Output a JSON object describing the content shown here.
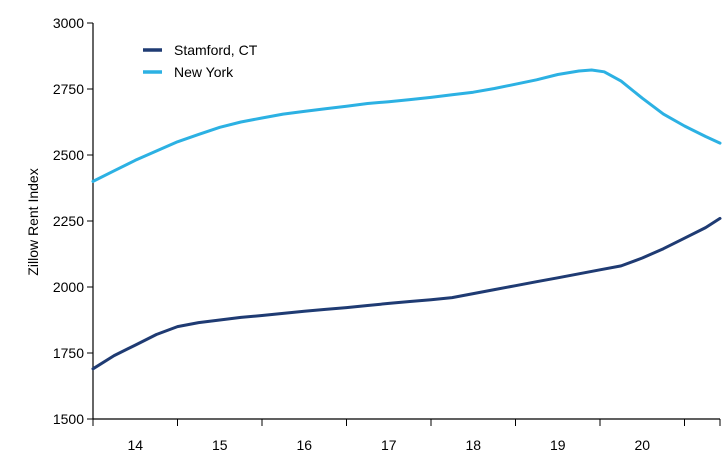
{
  "chart_data": {
    "type": "line",
    "title": "",
    "xlabel": "",
    "ylabel": "Zillow Rent Index",
    "ylim": [
      1500,
      3000
    ],
    "yticks": [
      1500,
      1750,
      2000,
      2250,
      2500,
      2750,
      3000
    ],
    "xlim": [
      2013.5,
      2020.92
    ],
    "xtick_labels": [
      "14",
      "15",
      "16",
      "17",
      "18",
      "19",
      "20"
    ],
    "xtick_label_positions": [
      2014.0,
      2015.0,
      2016.0,
      2017.0,
      2018.0,
      2019.0,
      2020.0
    ],
    "xtick_marks": [
      2013.5,
      2014.5,
      2015.5,
      2016.5,
      2017.5,
      2018.5,
      2019.5,
      2020.5,
      2020.92
    ],
    "grid": false,
    "legend": "top-left",
    "series": [
      {
        "name": "Stamford, CT",
        "color": "#1f3b73",
        "x": [
          2013.5,
          2013.75,
          2014.0,
          2014.25,
          2014.5,
          2014.75,
          2015.0,
          2015.25,
          2015.5,
          2015.75,
          2016.0,
          2016.25,
          2016.5,
          2016.75,
          2017.0,
          2017.25,
          2017.5,
          2017.75,
          2018.0,
          2018.25,
          2018.5,
          2018.75,
          2019.0,
          2019.25,
          2019.5,
          2019.75,
          2020.0,
          2020.25,
          2020.5,
          2020.75,
          2020.92
        ],
        "values": [
          1690,
          1740,
          1780,
          1820,
          1850,
          1865,
          1875,
          1885,
          1892,
          1900,
          1908,
          1915,
          1922,
          1930,
          1938,
          1945,
          1952,
          1960,
          1975,
          1990,
          2005,
          2020,
          2035,
          2050,
          2065,
          2080,
          2110,
          2145,
          2185,
          2225,
          2260
        ]
      },
      {
        "name": "New York",
        "color": "#2cb1e3",
        "x": [
          2013.5,
          2013.75,
          2014.0,
          2014.25,
          2014.5,
          2014.75,
          2015.0,
          2015.25,
          2015.5,
          2015.75,
          2016.0,
          2016.25,
          2016.5,
          2016.75,
          2017.0,
          2017.25,
          2017.5,
          2017.75,
          2018.0,
          2018.25,
          2018.5,
          2018.75,
          2019.0,
          2019.25,
          2019.4,
          2019.55,
          2019.75,
          2020.0,
          2020.25,
          2020.5,
          2020.75,
          2020.92
        ],
        "values": [
          2400,
          2440,
          2480,
          2515,
          2550,
          2578,
          2605,
          2625,
          2640,
          2655,
          2665,
          2675,
          2685,
          2695,
          2702,
          2710,
          2718,
          2728,
          2738,
          2752,
          2768,
          2785,
          2805,
          2818,
          2822,
          2815,
          2780,
          2715,
          2655,
          2610,
          2570,
          2545
        ]
      }
    ]
  }
}
